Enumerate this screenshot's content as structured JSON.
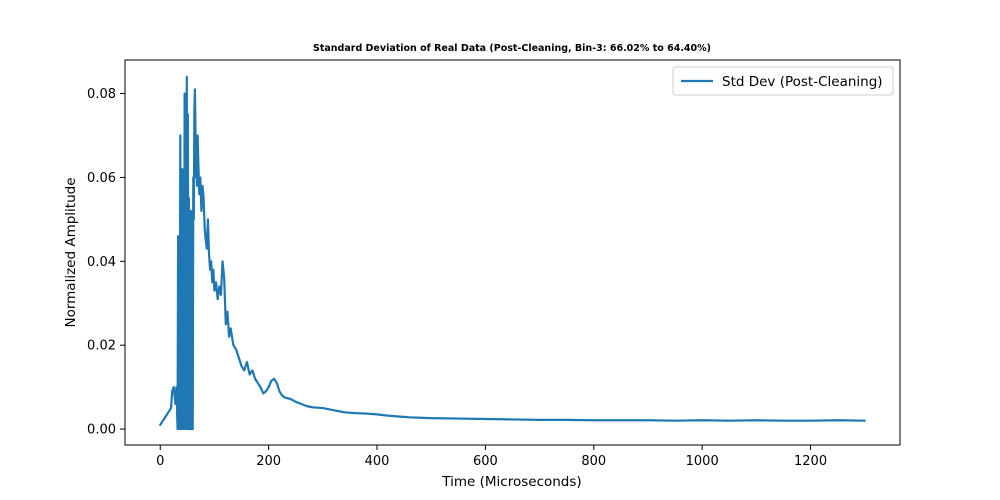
{
  "chart_data": {
    "type": "line",
    "title": "Standard Deviation of Real Data (Post-Cleaning, Bin-3: 66.02% to 64.40%)",
    "xlabel": "Time (Microseconds)",
    "ylabel": "Normalized Amplitude",
    "xlim": [
      -65,
      1365
    ],
    "ylim": [
      -0.0038,
      0.088
    ],
    "xticks": [
      0,
      200,
      400,
      600,
      800,
      1000,
      1200
    ],
    "xtick_labels": [
      "0",
      "200",
      "400",
      "600",
      "800",
      "1000",
      "1200"
    ],
    "yticks": [
      0.0,
      0.02,
      0.04,
      0.06,
      0.08
    ],
    "ytick_labels": [
      "0.00",
      "0.02",
      "0.04",
      "0.06",
      "0.08"
    ],
    "grid": false,
    "legend": {
      "position": "top-right",
      "entries": [
        "Std Dev (Post-Cleaning)"
      ]
    },
    "series": [
      {
        "name": "Std Dev (Post-Cleaning)",
        "color": "#1f77b4",
        "x": [
          0,
          5,
          10,
          15,
          20,
          22,
          25,
          28,
          30,
          32,
          33,
          34,
          35,
          36,
          37,
          38,
          39,
          40,
          41,
          42,
          43,
          44,
          45,
          46,
          47,
          48,
          49,
          50,
          51,
          52,
          53,
          54,
          55,
          56,
          57,
          58,
          59,
          60,
          61,
          62,
          63,
          64,
          65,
          66,
          67,
          68,
          69,
          70,
          72,
          74,
          76,
          78,
          80,
          82,
          84,
          86,
          88,
          90,
          92,
          94,
          96,
          98,
          100,
          103,
          106,
          109,
          112,
          115,
          118,
          121,
          124,
          127,
          130,
          135,
          140,
          145,
          150,
          155,
          160,
          165,
          170,
          175,
          180,
          185,
          190,
          195,
          200,
          205,
          210,
          215,
          220,
          225,
          230,
          240,
          250,
          260,
          270,
          280,
          300,
          320,
          340,
          360,
          380,
          400,
          420,
          440,
          460,
          480,
          500,
          550,
          600,
          650,
          700,
          750,
          800,
          850,
          900,
          950,
          1000,
          1050,
          1100,
          1150,
          1200,
          1250,
          1300
        ],
        "y": [
          0.001,
          0.002,
          0.003,
          0.004,
          0.005,
          0.009,
          0.01,
          0.006,
          0.01,
          0.0,
          0.046,
          0.01,
          0.045,
          0.0,
          0.07,
          0.0,
          0.062,
          0.0,
          0.058,
          0.0,
          0.062,
          0.002,
          0.08,
          0.0,
          0.076,
          0.0,
          0.084,
          0.0,
          0.075,
          0.0,
          0.055,
          0.0,
          0.045,
          0.0,
          0.052,
          0.0,
          0.048,
          0.0,
          0.06,
          0.05,
          0.076,
          0.081,
          0.072,
          0.06,
          0.066,
          0.058,
          0.07,
          0.065,
          0.056,
          0.06,
          0.052,
          0.058,
          0.055,
          0.048,
          0.045,
          0.043,
          0.05,
          0.042,
          0.038,
          0.04,
          0.035,
          0.038,
          0.033,
          0.035,
          0.031,
          0.034,
          0.032,
          0.04,
          0.036,
          0.025,
          0.028,
          0.022,
          0.024,
          0.02,
          0.019,
          0.017,
          0.015,
          0.014,
          0.016,
          0.013,
          0.014,
          0.012,
          0.011,
          0.01,
          0.0085,
          0.009,
          0.01,
          0.0115,
          0.012,
          0.011,
          0.009,
          0.008,
          0.0075,
          0.0072,
          0.0065,
          0.006,
          0.0055,
          0.0052,
          0.005,
          0.0045,
          0.004,
          0.0038,
          0.0037,
          0.0035,
          0.0032,
          0.003,
          0.0028,
          0.0027,
          0.0026,
          0.0025,
          0.0024,
          0.0023,
          0.0022,
          0.0022,
          0.0021,
          0.0021,
          0.0021,
          0.002,
          0.0021,
          0.002,
          0.0021,
          0.002,
          0.002,
          0.0021,
          0.002
        ]
      }
    ]
  }
}
